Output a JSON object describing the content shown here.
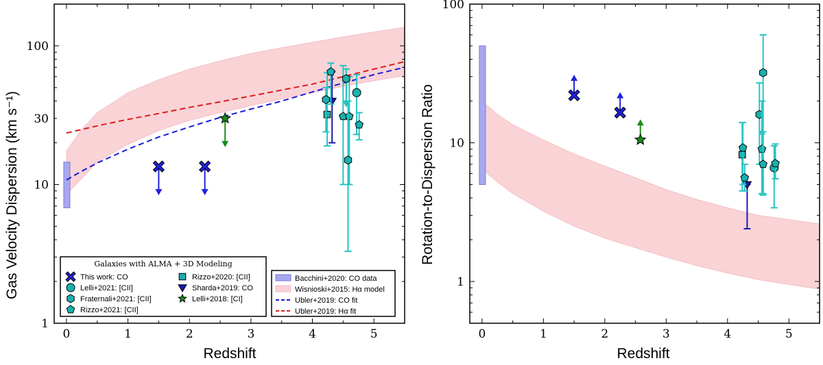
{
  "chart_data": [
    {
      "type": "scatter",
      "panel": "left",
      "xlabel": "Redshift",
      "ylabel": "Gas Velocity Dispersion (km s⁻¹)",
      "yscale": "log",
      "xlim": [
        -0.2,
        5.5
      ],
      "ylim": [
        1,
        200
      ],
      "xticks": [
        "0",
        "1",
        "2",
        "3",
        "4",
        "5"
      ],
      "yticks": [
        {
          "value": 1,
          "label": "1"
        },
        {
          "value": 10,
          "label": "10"
        },
        {
          "value": 30,
          "label": "30"
        },
        {
          "value": 100,
          "label": "100"
        }
      ],
      "bacchini_band": {
        "x": 0,
        "y_low": 6.8,
        "y_high": 14.5
      },
      "wisnioski_band": {
        "lower": [
          [
            0,
            8.5
          ],
          [
            0.5,
            14.5
          ],
          [
            1,
            19.5
          ],
          [
            1.5,
            24.5
          ],
          [
            2,
            29
          ],
          [
            2.5,
            33
          ],
          [
            3,
            37
          ],
          [
            3.5,
            41.5
          ],
          [
            4,
            46
          ],
          [
            4.5,
            51
          ],
          [
            5,
            56
          ],
          [
            5.5,
            61
          ]
        ],
        "upper": [
          [
            0,
            17.5
          ],
          [
            0.25,
            25
          ],
          [
            0.5,
            33
          ],
          [
            1,
            46
          ],
          [
            1.5,
            57
          ],
          [
            2,
            68
          ],
          [
            2.5,
            78
          ],
          [
            3,
            88
          ],
          [
            3.5,
            97
          ],
          [
            4,
            106
          ],
          [
            4.5,
            116
          ],
          [
            5,
            126
          ],
          [
            5.5,
            136
          ]
        ]
      },
      "ubler_co_fit": [
        [
          0,
          10.8
        ],
        [
          0.25,
          12.5
        ],
        [
          0.5,
          14.3
        ],
        [
          1,
          18
        ],
        [
          1.5,
          22
        ],
        [
          2,
          26
        ],
        [
          2.5,
          30.5
        ],
        [
          3,
          35
        ],
        [
          3.5,
          40
        ],
        [
          4,
          46.5
        ],
        [
          4.5,
          54
        ],
        [
          5,
          62
        ],
        [
          5.5,
          70
        ]
      ],
      "ubler_ha_fit": [
        [
          0,
          23.5
        ],
        [
          0.5,
          26.5
        ],
        [
          1,
          29.5
        ],
        [
          1.5,
          32.5
        ],
        [
          2,
          36
        ],
        [
          2.5,
          39.5
        ],
        [
          3,
          43.5
        ],
        [
          3.5,
          48
        ],
        [
          4,
          53
        ],
        [
          4.5,
          60
        ],
        [
          5,
          68
        ],
        [
          5.5,
          77
        ]
      ],
      "points": [
        {
          "survey": "this_work",
          "x": 1.5,
          "y": 13.5,
          "upper_limit": true
        },
        {
          "survey": "this_work",
          "x": 2.25,
          "y": 13.5,
          "upper_limit": true
        },
        {
          "survey": "lelli2018",
          "x": 2.58,
          "y": 30,
          "upper_limit": true
        },
        {
          "survey": "sharda2019",
          "x": 4.32,
          "y": 40,
          "yerr": [
            20,
            65
          ]
        },
        {
          "survey": "rizzo2020",
          "x": 4.24,
          "y": 32,
          "yerr": [
            19,
            64
          ]
        },
        {
          "survey": "fraternali2021",
          "x": 4.22,
          "y": 41,
          "yerr": [
            24,
            50
          ]
        },
        {
          "survey": "rizzo2021",
          "x": 4.3,
          "y": 65,
          "yerr": [
            38,
            75
          ]
        },
        {
          "survey": "rizzo2021",
          "x": 4.5,
          "y": 31,
          "yerr": [
            10,
            72
          ]
        },
        {
          "survey": "rizzo2021",
          "x": 4.6,
          "y": 31,
          "yerr": [
            10,
            60
          ]
        },
        {
          "survey": "fraternali2021",
          "x": 4.55,
          "y": 58,
          "yerr": [
            40,
            68
          ],
          "upper_limit": true
        },
        {
          "survey": "fraternali2021",
          "x": 4.58,
          "y": 15,
          "yerr": [
            3.3,
            40
          ]
        },
        {
          "survey": "lelli2021",
          "x": 4.72,
          "y": 46,
          "yerr": [
            23,
            62
          ]
        },
        {
          "survey": "rizzo2021",
          "x": 4.76,
          "y": 27,
          "yerr": [
            21,
            33
          ]
        }
      ]
    },
    {
      "type": "scatter",
      "panel": "right",
      "xlabel": "Redshift",
      "ylabel": "Rotation-to-Dispersion Ratio",
      "yscale": "log",
      "xlim": [
        -0.2,
        5.5
      ],
      "ylim": [
        0.5,
        100
      ],
      "xticks": [
        "0",
        "1",
        "2",
        "3",
        "4",
        "5"
      ],
      "yticks": [
        {
          "value": 1,
          "label": "1"
        },
        {
          "value": 10,
          "label": "10"
        },
        {
          "value": 100,
          "label": "100"
        }
      ],
      "bacchini_band": {
        "x": 0,
        "y_low": 5,
        "y_high": 50
      },
      "wisnioski_band": {
        "lower": [
          [
            0,
            6.5
          ],
          [
            0.25,
            5.2
          ],
          [
            0.5,
            4.3
          ],
          [
            1,
            3.2
          ],
          [
            1.5,
            2.5
          ],
          [
            2,
            2.05
          ],
          [
            2.5,
            1.75
          ],
          [
            3,
            1.5
          ],
          [
            3.5,
            1.3
          ],
          [
            4,
            1.15
          ],
          [
            4.5,
            1.03
          ],
          [
            5,
            0.95
          ],
          [
            5.5,
            0.88
          ]
        ],
        "upper": [
          [
            0,
            20
          ],
          [
            0.25,
            16
          ],
          [
            0.5,
            13.5
          ],
          [
            1,
            10.5
          ],
          [
            1.5,
            8.3
          ],
          [
            2,
            6.8
          ],
          [
            2.5,
            5.6
          ],
          [
            3,
            4.6
          ],
          [
            3.5,
            3.9
          ],
          [
            4,
            3.4
          ],
          [
            4.5,
            3.0
          ],
          [
            5,
            2.8
          ],
          [
            5.5,
            2.6
          ]
        ]
      },
      "points": [
        {
          "survey": "this_work",
          "x": 1.5,
          "y": 22,
          "lower_limit": true
        },
        {
          "survey": "this_work",
          "x": 2.25,
          "y": 16.5,
          "lower_limit": true
        },
        {
          "survey": "lelli2018",
          "x": 2.58,
          "y": 10.5,
          "lower_limit": true
        },
        {
          "survey": "sharda2019",
          "x": 4.32,
          "y": 5,
          "yerr": [
            2.4,
            5
          ]
        },
        {
          "survey": "rizzo2020",
          "x": 4.24,
          "y": 8.2,
          "yerr": [
            4.5,
            14
          ]
        },
        {
          "survey": "rizzo2021",
          "x": 4.25,
          "y": 9.2,
          "yerr": [
            5,
            14
          ]
        },
        {
          "survey": "rizzo2021",
          "x": 4.28,
          "y": 5.6,
          "yerr": [
            4.5,
            7
          ]
        },
        {
          "survey": "fraternali2021",
          "x": 4.52,
          "y": 16,
          "yerr": [
            7,
            27
          ]
        },
        {
          "survey": "rizzo2021",
          "x": 4.56,
          "y": 9,
          "yerr": [
            4.3,
            20
          ],
          "lower_limit": true
        },
        {
          "survey": "fraternali2021",
          "x": 4.58,
          "y": 32,
          "yerr": [
            4.2,
            60
          ]
        },
        {
          "survey": "rizzo2021",
          "x": 4.58,
          "y": 7,
          "yerr": [
            4.3,
            12
          ]
        },
        {
          "survey": "lelli2021",
          "x": 4.76,
          "y": 6.6,
          "yerr": [
            3.4,
            9.5
          ]
        },
        {
          "survey": "rizzo2021",
          "x": 4.78,
          "y": 7.1,
          "yerr": [
            5.5,
            9.8
          ]
        }
      ]
    }
  ],
  "legend": {
    "galaxies_title": "Galaxies with ALMA + 3D Modeling",
    "galaxies": [
      {
        "id": "this_work",
        "label": "This work: CO",
        "marker": "cross",
        "color": "#2020dd"
      },
      {
        "id": "lelli2021",
        "label": "Lelli+2021: [CII]",
        "marker": "circle",
        "color": "#1ab0ae"
      },
      {
        "id": "fraternali2021",
        "label": "Fraternali+2021: [CII]",
        "marker": "hexagon",
        "color": "#1ab0ae"
      },
      {
        "id": "rizzo2021",
        "label": "Rizzo+2021: [CII]",
        "marker": "pentagon",
        "color": "#1ab0ae"
      },
      {
        "id": "rizzo2020",
        "label": "Rizzo+2020: [CII]",
        "marker": "square",
        "color": "#1ab0ae"
      },
      {
        "id": "sharda2019",
        "label": "Sharda+2019: CO",
        "marker": "triangle-down",
        "color": "#1a1ab0"
      },
      {
        "id": "lelli2018",
        "label": "Lelli+2018: [CI]",
        "marker": "star",
        "color": "#1a8a1a"
      }
    ],
    "models": [
      {
        "id": "bacchini",
        "label": "Bacchini+2020: CO data",
        "style": "band-blue"
      },
      {
        "id": "wisnioski",
        "label": "Wisnioski+2015: Hα model",
        "style": "band-pink"
      },
      {
        "id": "ubler_co",
        "label": "Ubler+2019: CO fit",
        "style": "dash-blue"
      },
      {
        "id": "ubler_ha",
        "label": "Ubler+2019: Hα fit",
        "style": "dash-red"
      }
    ]
  },
  "colors": {
    "teal": "#1ab0ae",
    "teal_err": "#28c4c2",
    "blue": "#2020dd",
    "navy": "#1a1ab0",
    "green": "#1a8a1a",
    "band_blue": "#a8a8f0",
    "band_pink": "#f9d3d6",
    "dash_red": "#dd1a1a",
    "dash_blue": "#1a1add"
  }
}
